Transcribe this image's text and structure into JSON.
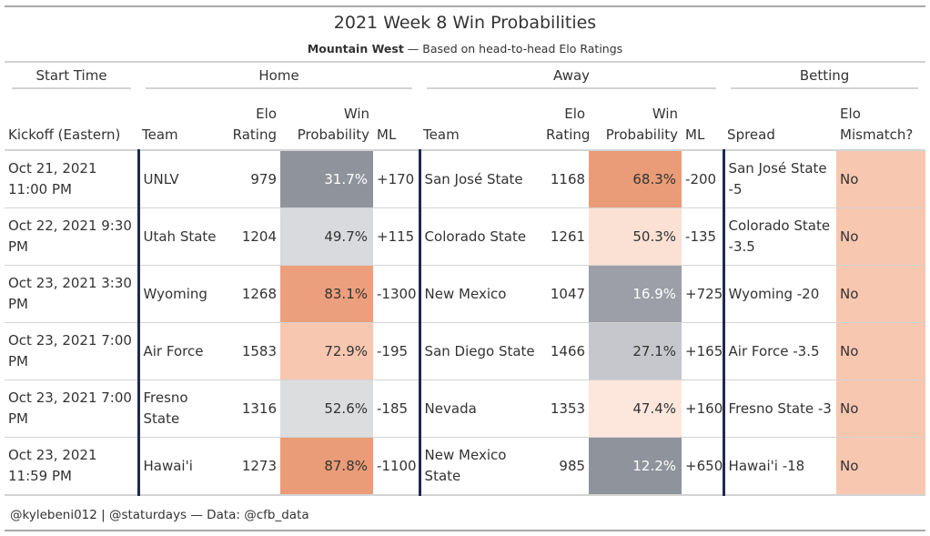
{
  "title": "2021 Week 8 Win Probabilities",
  "subtitle": {
    "conference": "Mountain West",
    "rest": " — Based on head-to-head Elo Ratings"
  },
  "spanners": {
    "start_time": "Start Time",
    "home": "Home",
    "away": "Away",
    "betting": "Betting"
  },
  "columns": {
    "kickoff": "Kickoff (Eastern)",
    "team": "Team",
    "elo_rating": "Elo Rating",
    "win_probability": "Win Probability",
    "ml": "ML",
    "spread": "Spread",
    "elo_mismatch": "Elo Mismatch?"
  },
  "colors": {
    "divider": "#1c2c4c",
    "rule": "#d3d3d3"
  },
  "rows": [
    {
      "kickoff": "Oct 21, 2021 11:00 PM",
      "home_team": "UNLV",
      "home_elo": "979",
      "home_wp": "31.7%",
      "home_wp_color": "#8f939c",
      "home_wp_text": "#ffffff",
      "home_ml": "+170",
      "away_team": "San José State",
      "away_elo": "1168",
      "away_wp": "68.3%",
      "away_wp_color": "#e99c77",
      "away_wp_text": "#333333",
      "away_ml": "-200",
      "spread": "San José State -5",
      "mismatch": "No"
    },
    {
      "kickoff": "Oct 22, 2021 9:30 PM",
      "home_team": "Utah State",
      "home_elo": "1204",
      "home_wp": "49.7%",
      "home_wp_color": "#d9dadd",
      "home_wp_text": "#333333",
      "home_ml": "+115",
      "away_team": "Colorado State",
      "away_elo": "1261",
      "away_wp": "50.3%",
      "away_wp_color": "#fbe0d4",
      "away_wp_text": "#333333",
      "away_ml": "-135",
      "spread": "Colorado State -3.5",
      "mismatch": "No"
    },
    {
      "kickoff": "Oct 23, 2021 3:30 PM",
      "home_team": "Wyoming",
      "home_elo": "1268",
      "home_wp": "83.1%",
      "home_wp_color": "#ec9f7d",
      "home_wp_text": "#333333",
      "home_ml": "-1300",
      "away_team": "New Mexico",
      "away_elo": "1047",
      "away_wp": "16.9%",
      "away_wp_color": "#9c9fa7",
      "away_wp_text": "#ffffff",
      "away_ml": "+725",
      "spread": "Wyoming -20",
      "mismatch": "No"
    },
    {
      "kickoff": "Oct 23, 2021 7:00 PM",
      "home_team": "Air Force",
      "home_elo": "1583",
      "home_wp": "72.9%",
      "home_wp_color": "#f8c7b0",
      "home_wp_text": "#333333",
      "home_ml": "-195",
      "away_team": "San Diego State",
      "away_elo": "1466",
      "away_wp": "27.1%",
      "away_wp_color": "#c6c7cc",
      "away_wp_text": "#333333",
      "away_ml": "+165",
      "spread": "Air Force -3.5",
      "mismatch": "No"
    },
    {
      "kickoff": "Oct 23, 2021 7:00 PM",
      "home_team": "Fresno State",
      "home_elo": "1316",
      "home_wp": "52.6%",
      "home_wp_color": "#dcdddf",
      "home_wp_text": "#333333",
      "home_ml": "-185",
      "away_team": "Nevada",
      "away_elo": "1353",
      "away_wp": "47.4%",
      "away_wp_color": "#fde6dc",
      "away_wp_text": "#333333",
      "away_ml": "+160",
      "spread": "Fresno State -3",
      "mismatch": "No"
    },
    {
      "kickoff": "Oct 23, 2021 11:59 PM",
      "home_team": "Hawai'i",
      "home_elo": "1273",
      "home_wp": "87.8%",
      "home_wp_color": "#e99c77",
      "home_wp_text": "#333333",
      "home_ml": "-1100",
      "away_team": "New Mexico State",
      "away_elo": "985",
      "away_wp": "12.2%",
      "away_wp_color": "#8f939c",
      "away_wp_text": "#ffffff",
      "away_ml": "+650",
      "spread": "Hawai'i -18",
      "mismatch": "No"
    }
  ],
  "mismatch_color": "#f8c7b0",
  "footer": "@kylebeni012 | @staturdays — Data: @cfb_data"
}
